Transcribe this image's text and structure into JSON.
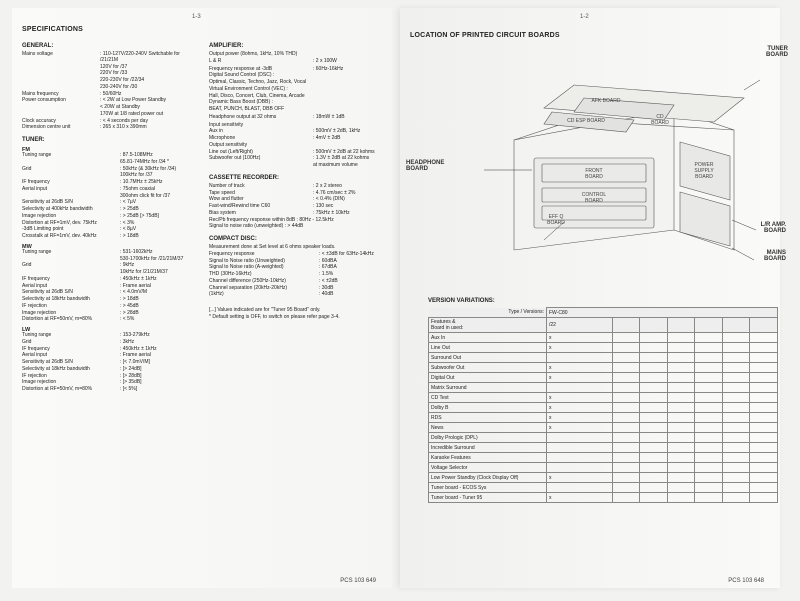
{
  "pagenums": {
    "left": "1-3",
    "right": "1-2"
  },
  "footers": {
    "left": "PCS 103 649",
    "right": "PCS 103 648"
  },
  "specs": {
    "title": "SPECIFICATIONS",
    "general": {
      "heading": "GENERAL:",
      "rows": [
        {
          "lbl": "Mains voltage",
          "val": ": 110-127V/220-240V Switchable for /21/21M"
        },
        {
          "lbl": "",
          "val": "  120V for /37"
        },
        {
          "lbl": "",
          "val": "  220V for /33"
        },
        {
          "lbl": "",
          "val": "  220-230V for /22/34"
        },
        {
          "lbl": "",
          "val": "  230-240V for /30"
        },
        {
          "lbl": "Mains frequency",
          "val": ": 50/60Hz"
        },
        {
          "lbl": "Power consumption",
          "val": ": < 2W at Low Power Standby"
        },
        {
          "lbl": "",
          "val": "  < 20W at Standby"
        },
        {
          "lbl": "",
          "val": "  170W at 1/8 rated power out"
        },
        {
          "lbl": "Clock accuracy",
          "val": ": < 4 seconds per day"
        },
        {
          "lbl": "Dimension centre unit",
          "val": ": 265 x 310 x 390mm"
        }
      ]
    },
    "tuner": {
      "heading": "TUNER:",
      "fm": {
        "sub": "FM",
        "rows": [
          {
            "lbl": "Tuning range",
            "val": ": 87.5-108MHz"
          },
          {
            "lbl": "",
            "val": "  65.81-74MHz for /34 *"
          },
          {
            "lbl": "Grid",
            "val": ": 50kHz (& 30kHz for /34)"
          },
          {
            "lbl": "",
            "val": "  100kHz for /37"
          },
          {
            "lbl": "IF frequency",
            "val": ": 10.7MHz ± 25kHz"
          },
          {
            "lbl": "Aerial input",
            "val": ": 75ohm coaxial"
          },
          {
            "lbl": "",
            "val": "  300ohm click fit for /37"
          },
          {
            "lbl": "Sensitivity at 26dB S/N",
            "val": ": < 7µV"
          },
          {
            "lbl": "Selectivity at 400kHz bandwidth",
            "val": ": > 25dB"
          },
          {
            "lbl": "Image rejection",
            "val": ": > 25dB [> 75dB]"
          },
          {
            "lbl": "Distortion at RF=1mV, dev. 75kHz",
            "val": ": < 3%"
          },
          {
            "lbl": "-3dB Limiting point",
            "val": ": < 8µV"
          },
          {
            "lbl": "Crosstalk at RF=1mV, dev. 40kHz",
            "val": ": > 18dB"
          }
        ]
      },
      "mw": {
        "sub": "MW",
        "rows": [
          {
            "lbl": "Tuning range",
            "val": ": 531-1602kHz"
          },
          {
            "lbl": "",
            "val": "  530-1700kHz for /21/21M/37"
          },
          {
            "lbl": "Grid",
            "val": ": 9kHz"
          },
          {
            "lbl": "",
            "val": "  10kHz for /21/21M/37"
          },
          {
            "lbl": "IF frequency",
            "val": ": 450kHz ± 1kHz"
          },
          {
            "lbl": "Aerial input",
            "val": ": Frame aerial"
          },
          {
            "lbl": "Sensitivity at 26dB S/N",
            "val": ": < 4.0mV/M"
          },
          {
            "lbl": "Selectivity at 18kHz bandwidth",
            "val": ": > 18dB"
          },
          {
            "lbl": "IF rejection",
            "val": ": > 45dB"
          },
          {
            "lbl": "Image rejection",
            "val": ": > 28dB"
          },
          {
            "lbl": "Distortion at RF=50mV, m=80%",
            "val": ": < 5%"
          }
        ]
      },
      "lw": {
        "sub": "LW",
        "rows": [
          {
            "lbl": "Tuning range",
            "val": ": 153-279kHz"
          },
          {
            "lbl": "Grid",
            "val": ": 3kHz"
          },
          {
            "lbl": "IF frequency",
            "val": ": 450kHz ± 1kHz"
          },
          {
            "lbl": "Aerial input",
            "val": ": Frame aerial"
          },
          {
            "lbl": "Sensitivity at 26dB S/N",
            "val": ": [< 7.0mV/M]"
          },
          {
            "lbl": "Selectivity at 18kHz bandwidth",
            "val": ": [> 24dB]"
          },
          {
            "lbl": "IF rejection",
            "val": ": [> 28dB]"
          },
          {
            "lbl": "Image rejection",
            "val": ": [> 35dB]"
          },
          {
            "lbl": "Distortion at RF=50mV, m=80%",
            "val": ": [< 5%]"
          }
        ]
      }
    },
    "amplifier": {
      "heading": "AMPLIFIER:",
      "rows": [
        {
          "lbl": "Output power (8ohms, 1kHz, 10% THD)",
          "val": ""
        },
        {
          "lbl": "L & R",
          "val": ": 2 x 100W"
        },
        {
          "lbl": "",
          "val": ""
        },
        {
          "lbl": "Frequency response at -3dB",
          "val": ": 60Hz-16kHz"
        },
        {
          "lbl": "Digital Sound Control (DSC) :",
          "val": ""
        },
        {
          "lbl": "Optimal, Classic, Techno, Jazz, Rock, Vocal",
          "val": ""
        },
        {
          "lbl": "Virtual Environment Control (VEC) :",
          "val": ""
        },
        {
          "lbl": "Hall, Disco, Concert, Club, Cinema, Arcade",
          "val": ""
        },
        {
          "lbl": "Dynamic Bass Boost (DBB) :",
          "val": ""
        },
        {
          "lbl": "BEAT, PUNCH, BLAST, DBB OFF",
          "val": ""
        },
        {
          "lbl": "",
          "val": ""
        },
        {
          "lbl": "Headphone output at 32 ohms",
          "val": ": 18mW ± 1dB"
        },
        {
          "lbl": "",
          "val": ""
        },
        {
          "lbl": "Input sensitivity",
          "val": ""
        },
        {
          "lbl": "Aux in",
          "val": ": 500mV ± 2dB, 1kHz"
        },
        {
          "lbl": "Microphone",
          "val": ": 4mV ± 2dB"
        },
        {
          "lbl": "Output sensitivity",
          "val": ""
        },
        {
          "lbl": "Line out (Left/Right)",
          "val": ": 500mV ± 2dB at 22 kohms"
        },
        {
          "lbl": "Subwoofer out (100Hz)",
          "val": ": 1.3V ± 2dB at 22 kohms"
        },
        {
          "lbl": "",
          "val": "  at maximum volume"
        }
      ]
    },
    "cassette": {
      "heading": "CASSETTE RECORDER:",
      "rows": [
        {
          "lbl": "Number of track",
          "val": ": 2 x 2 stereo"
        },
        {
          "lbl": "Tape speed",
          "val": ": 4.76 cm/sec ± 2%"
        },
        {
          "lbl": "Wow and flutter",
          "val": ": < 0.4% (DIN)"
        },
        {
          "lbl": "Fast-wind/Rewind time C60",
          "val": ": 130 sec"
        },
        {
          "lbl": "Bias system",
          "val": ": 75kHz ± 10kHz"
        },
        {
          "lbl": "Rec/Pb frequency response within 8dB : 80Hz - 12.5kHz",
          "val": ""
        },
        {
          "lbl": "Signal to noise ratio  (unweighted) : > 44dB",
          "val": ""
        }
      ]
    },
    "cd": {
      "heading": "COMPACT DISC:",
      "rows": [
        {
          "lbl": "Measurement done at Set level at 6 ohms speaker loads.",
          "val": ""
        },
        {
          "lbl": "Frequency response",
          "val": ": < ±3dB for 63Hz-14kHz"
        },
        {
          "lbl": "Signal to Noise ratio (Unweighted)",
          "val": ": 60dBA"
        },
        {
          "lbl": "Signal to Noise ratio (A-weighted)",
          "val": ": 67dBA"
        },
        {
          "lbl": "THD (30Hz-16kHz)",
          "val": ": 1.5%"
        },
        {
          "lbl": "Channel difference (250Hz-10kHz)",
          "val": ": < ±2dB"
        },
        {
          "lbl": "Channel separation (20kHz-20kHz)",
          "val": ": 30dB"
        },
        {
          "lbl": "                              (1kHz)",
          "val": ": 40dB"
        }
      ]
    },
    "notes": [
      "[...]   Values indicated are for \"Tuner 95 Board\" only.",
      "*       Default setting is OFF, to switch on please refer page 3-4."
    ]
  },
  "rightTitle": "LOCATION OF PRINTED CIRCUIT BOARDS",
  "callouts": {
    "tuner": "TUNER\nBOARD",
    "headphone": "HEADPHONE\nBOARD",
    "mains": "MAINS\nBOARD",
    "lramp": "L/R AMP.\nBOARD",
    "afk": "AFK BOARD",
    "cdesp": "CD ESP BOARD",
    "cd": "CD\nBOARD",
    "front": "FRONT\nBOARD",
    "power": "POWER\nSUPPLY\nBOARD",
    "control": "CONTROL\nBOARD",
    "effq": "EFF Q\nBOARD"
  },
  "versions": {
    "title": "VERSION VARIATIONS:",
    "typeHeader": "Type / Versions:",
    "model": "FW-C80",
    "featHeader": "Features &\nBoard in used:",
    "colLabel": "/22",
    "rows": [
      {
        "name": "Aux In",
        "x": true
      },
      {
        "name": "Line Out",
        "x": true
      },
      {
        "name": "Surround Out",
        "x": false
      },
      {
        "name": "Subwoofer Out",
        "x": true
      },
      {
        "name": "Digital Out",
        "x": true
      },
      {
        "name": "Matrix Surround",
        "x": false
      },
      {
        "name": "CD Text",
        "x": true
      },
      {
        "name": "Dolby B",
        "x": true
      },
      {
        "name": "RDS",
        "x": true
      },
      {
        "name": "News",
        "x": true
      },
      {
        "name": "Dolby Prologic (DPL)",
        "x": false
      },
      {
        "name": "Incredible Surround",
        "x": false
      },
      {
        "name": "Karaoke Features",
        "x": false
      },
      {
        "name": "Voltage Selector",
        "x": false
      },
      {
        "name": "Low Power Standby (Clock Display Off)",
        "x": true
      },
      {
        "name": "Tuner board - ECOS Sys",
        "x": false
      },
      {
        "name": "Tuner board - Tuner 95",
        "x": true
      }
    ]
  }
}
